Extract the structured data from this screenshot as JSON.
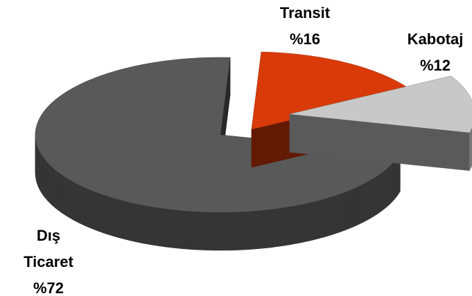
{
  "chart_data": {
    "type": "pie3d",
    "categories": [
      "Transit",
      "Kabotaj",
      "Dış Ticaret"
    ],
    "values": [
      16,
      12,
      72
    ],
    "value_labels": [
      "%16",
      "%12",
      "%72"
    ],
    "colors": [
      "#d93a0a",
      "#c8c8c8",
      "#595959"
    ]
  }
}
